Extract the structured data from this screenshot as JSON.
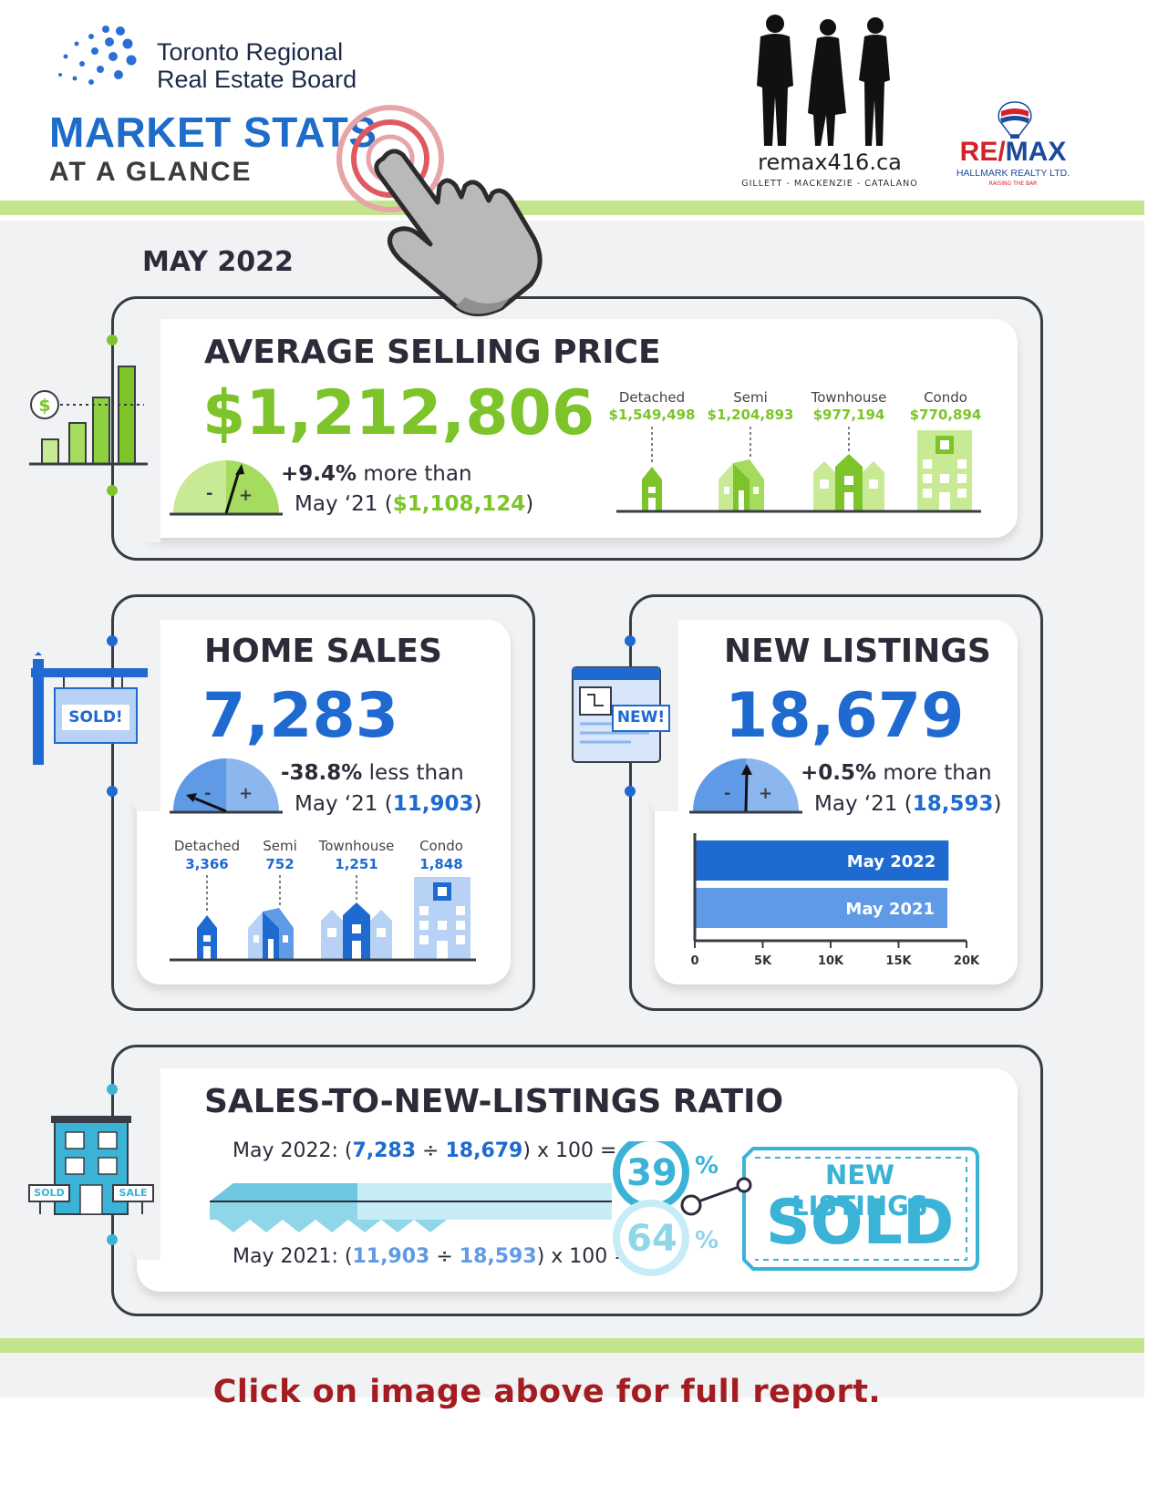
{
  "header": {
    "board_line1": "Toronto Regional",
    "board_line2": "Real Estate Board",
    "title": "MARKET STATS",
    "subtitle": "AT A GLANCE",
    "site": "remax416.ca",
    "site_team": "GILLETT - MACKENZIE - CATALANO",
    "brand_re": "RE/",
    "brand_max": "MAX",
    "brand_office": "HALLMARK REALTY LTD.",
    "brand_tag": "RAISING THE BAR"
  },
  "month": "MAY 2022",
  "avg_price": {
    "title": "AVERAGE SELLING PRICE",
    "value": "$1,212,806",
    "change": "+9.4%",
    "change_text": "more than",
    "prev_prefix": "May ‘21 (",
    "prev_value": "$1,108,124",
    "prev_suffix": ")",
    "types": [
      {
        "label": "Detached",
        "value": "$1,549,498"
      },
      {
        "label": "Semi",
        "value": "$1,204,893"
      },
      {
        "label": "Townhouse",
        "value": "$977,194"
      },
      {
        "label": "Condo",
        "value": "$770,894"
      }
    ]
  },
  "home_sales": {
    "title": "HOME SALES",
    "value": "7,283",
    "change": "-38.8%",
    "change_text": "less than",
    "prev_prefix": "May ‘21 (",
    "prev_value": "11,903",
    "prev_suffix": ")",
    "sign_text": "SOLD!",
    "types": [
      {
        "label": "Detached",
        "value": "3,366"
      },
      {
        "label": "Semi",
        "value": "752"
      },
      {
        "label": "Townhouse",
        "value": "1,251"
      },
      {
        "label": "Condo",
        "value": "1,848"
      }
    ]
  },
  "new_listings": {
    "title": "NEW LISTINGS",
    "value": "18,679",
    "change": "+0.5%",
    "change_text": "more than",
    "prev_prefix": "May ‘21 (",
    "prev_value": "18,593",
    "prev_suffix": ")",
    "badge": "NEW!",
    "chart_data": {
      "type": "bar",
      "orientation": "horizontal",
      "categories": [
        "May 2022",
        "May 2021"
      ],
      "values": [
        18679,
        18593
      ],
      "xlim": [
        0,
        20000
      ],
      "xticks": [
        "0",
        "5K",
        "10K",
        "15K",
        "20K"
      ],
      "colors": [
        "#1e6ad0",
        "#5f9ae6"
      ]
    }
  },
  "ratio": {
    "title": "SALES-TO-NEW-LISTINGS RATIO",
    "line1_prefix": "May 2022: (",
    "line1_a": "7,283",
    "line1_op": " ÷ ",
    "line1_b": "18,679",
    "line1_suffix": ") x 100 =",
    "line2_prefix": "May 2021: (",
    "line2_a": "11,903",
    "line2_op": " ÷ ",
    "line2_b": "18,593",
    "line2_suffix": ") x 100 =",
    "pct_2022": "39",
    "pct_2021": "64",
    "pct_sign": "%",
    "tag_line1": "NEW LISTINGS",
    "tag_line2": "SOLD",
    "sold_sign": "SOLD",
    "sale_sign": "SALE"
  },
  "footer": "Click on image above for full report.",
  "colors": {
    "green": "#7cc42a",
    "blue": "#1e6ad0",
    "teal": "#3ab3d6",
    "strip": "#c3e38c",
    "footer_red": "#a51c20"
  }
}
